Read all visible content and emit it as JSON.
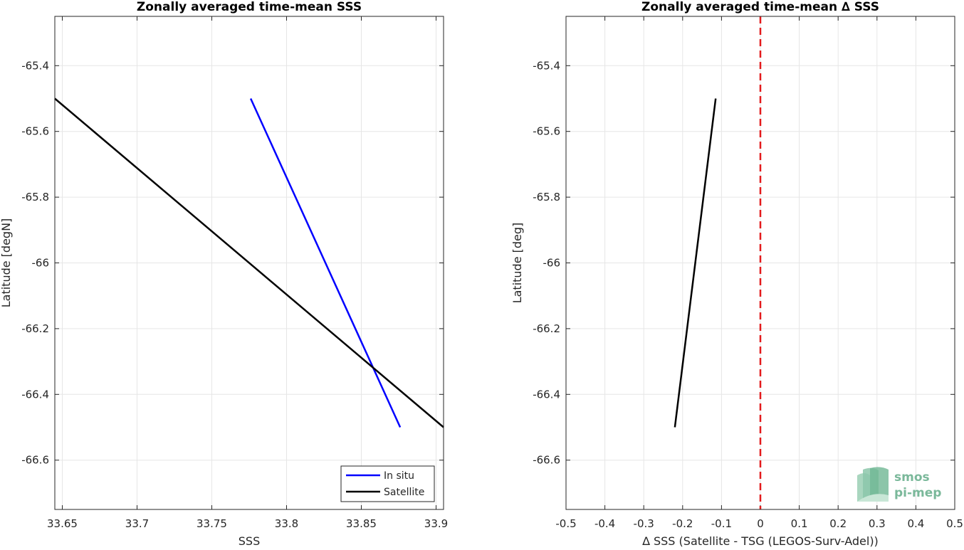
{
  "chart_data": [
    {
      "type": "line",
      "title": "Zonally averaged time-mean SSS",
      "xlabel": "SSS",
      "ylabel": "Latitude [degN]",
      "xlim": [
        33.645,
        33.905
      ],
      "ylim": [
        -66.75,
        -65.25
      ],
      "y_reversed": true,
      "x_ticks": [
        "33.65",
        "33.7",
        "33.75",
        "33.8",
        "33.85",
        "33.9"
      ],
      "x_tick_values": [
        33.65,
        33.7,
        33.75,
        33.8,
        33.85,
        33.9
      ],
      "y_ticks": [
        "-65.4",
        "-65.6",
        "-65.8",
        "-66",
        "-66.2",
        "-66.4",
        "-66.6"
      ],
      "y_tick_values": [
        -65.4,
        -65.6,
        -65.8,
        -66.0,
        -66.2,
        -66.4,
        -66.6
      ],
      "grid": true,
      "legend_position": "bottom-right",
      "series": [
        {
          "name": "In situ",
          "color": "#0000ff",
          "x": [
            33.776,
            33.876
          ],
          "y": [
            -65.5,
            -66.5
          ]
        },
        {
          "name": "Satellite",
          "color": "#000000",
          "x": [
            33.645,
            33.905
          ],
          "y": [
            -65.5,
            -66.5
          ]
        }
      ]
    },
    {
      "type": "line",
      "title": "Zonally averaged time-mean ∆ SSS",
      "xlabel": "∆ SSS (Satellite - TSG (LEGOS-Surv-Adel))",
      "ylabel": "Latitude [deg]",
      "xlim": [
        -0.5,
        0.5
      ],
      "ylim": [
        -66.75,
        -65.25
      ],
      "y_reversed": true,
      "x_ticks": [
        "-0.5",
        "-0.4",
        "-0.3",
        "-0.2",
        "-0.1",
        "0",
        "0.1",
        "0.2",
        "0.3",
        "0.4",
        "0.5"
      ],
      "x_tick_values": [
        -0.5,
        -0.4,
        -0.3,
        -0.2,
        -0.1,
        0,
        0.1,
        0.2,
        0.3,
        0.4,
        0.5
      ],
      "y_ticks": [
        "-65.4",
        "-65.6",
        "-65.8",
        "-66",
        "-66.2",
        "-66.4",
        "-66.6"
      ],
      "y_tick_values": [
        -65.4,
        -65.6,
        -65.8,
        -66.0,
        -66.2,
        -66.4,
        -66.6
      ],
      "grid": true,
      "reference_line": {
        "x": 0,
        "color": "#e31a1c",
        "style": "dashed"
      },
      "series": [
        {
          "color": "#000000",
          "x": [
            -0.115,
            -0.22
          ],
          "y": [
            -65.5,
            -66.5
          ]
        }
      ]
    }
  ],
  "logo": {
    "line1": "smos",
    "line2": "pi-mep",
    "color": "#7ab89a"
  }
}
